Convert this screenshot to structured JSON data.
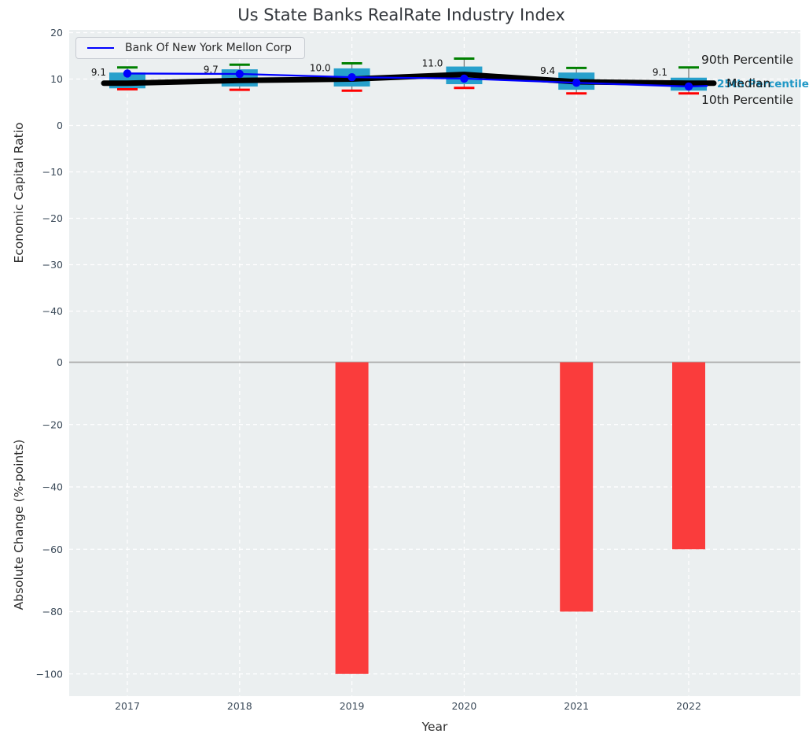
{
  "title": "Us State Banks RealRate Industry Index",
  "legend": {
    "series_label": "Bank Of New York Mellon Corp"
  },
  "annotations": {
    "p90": "90th Percentile",
    "p25": "25th Percentile",
    "median": "Median",
    "p10": "10th Percentile"
  },
  "colors": {
    "company_line": "#0000ff",
    "median_line": "#000000",
    "box_fill": "#27a0cc",
    "p90_cap": "#008000",
    "p10_cap": "#ff0000",
    "whisker": "#7a7a7a",
    "bar_fill": "#fa3c3c",
    "plot_bg": "#ebeff0",
    "grid": "#ffffff",
    "zero_line": "#ababab",
    "tick_text": "#3b4a59",
    "data_label_text": "#111111",
    "percentile_25_text": "#2098c6"
  },
  "chart_data": [
    {
      "type": "boxplot+line",
      "ylabel": "Economic Capital Ratio",
      "x": [
        "2017",
        "2018",
        "2019",
        "2020",
        "2021",
        "2022"
      ],
      "yticks": [
        20,
        10,
        0,
        -10,
        -20,
        -30,
        -40
      ],
      "ylim": [
        -49,
        21.5
      ],
      "grid": true,
      "legend_position": "upper left",
      "series": [
        {
          "name": "Median",
          "values": [
            9.1,
            9.7,
            10.0,
            11.0,
            9.4,
            9.1
          ]
        },
        {
          "name": "Bank Of New York Mellon Corp",
          "values": [
            11.2,
            11.1,
            10.4,
            10.1,
            9.2,
            8.4
          ]
        }
      ],
      "percentiles": {
        "p90": [
          12.5,
          13.1,
          13.4,
          14.4,
          12.4,
          12.5
        ],
        "p75": [
          11.4,
          12.1,
          12.3,
          12.7,
          11.4,
          10.3
        ],
        "p25": [
          8.0,
          8.4,
          8.4,
          8.9,
          7.7,
          7.5
        ],
        "p10": [
          7.8,
          7.7,
          7.5,
          8.1,
          6.9,
          6.9
        ]
      },
      "median_labels": [
        "9.1",
        "9.7",
        "10.0",
        "11.0",
        "9.4",
        "9.1"
      ]
    },
    {
      "type": "bar",
      "ylabel": "Absolute Change (%-points)",
      "xlabel": "Year",
      "categories": [
        "2017",
        "2018",
        "2019",
        "2020",
        "2021",
        "2022"
      ],
      "values": [
        0,
        0,
        -100,
        0,
        -80,
        -60
      ],
      "yticks": [
        0,
        -20,
        -40,
        -60,
        -80,
        -100
      ],
      "ylim": [
        -107,
        3
      ],
      "grid": true
    }
  ]
}
